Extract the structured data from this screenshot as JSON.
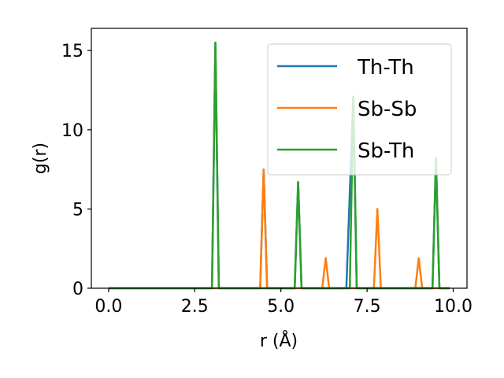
{
  "chart_data": {
    "type": "line",
    "xlabel": "r (Å)",
    "ylabel": "g(r)",
    "xlim": [
      -0.5,
      10.4
    ],
    "ylim": [
      0,
      16.4
    ],
    "xticks": [
      0.0,
      2.5,
      5.0,
      7.5,
      10.0
    ],
    "xtick_labels": [
      "0.0",
      "2.5",
      "5.0",
      "7.5",
      "10.0"
    ],
    "yticks": [
      0,
      5,
      10,
      15
    ],
    "ytick_labels": [
      "0",
      "5",
      "10",
      "15"
    ],
    "grid": false,
    "legend_position": "top-right",
    "series": [
      {
        "name": "Th-Th",
        "color": "#1f77b4",
        "points": [
          [
            0.0,
            0
          ],
          [
            3.0,
            0
          ],
          [
            3.1,
            15.5
          ],
          [
            3.2,
            0
          ],
          [
            4.4,
            0
          ],
          [
            4.5,
            7.5
          ],
          [
            4.6,
            0
          ],
          [
            5.4,
            0
          ],
          [
            5.5,
            6.7
          ],
          [
            5.6,
            0
          ],
          [
            6.9,
            0
          ],
          [
            7.1,
            12.1
          ],
          [
            7.2,
            0
          ],
          [
            9.4,
            0
          ],
          [
            9.5,
            8.2
          ],
          [
            9.6,
            0
          ],
          [
            9.9,
            0
          ]
        ]
      },
      {
        "name": "Sb-Sb",
        "color": "#ff7f0e",
        "points": [
          [
            0.0,
            0
          ],
          [
            4.4,
            0
          ],
          [
            4.5,
            7.5
          ],
          [
            4.6,
            0
          ],
          [
            6.2,
            0
          ],
          [
            6.3,
            1.9
          ],
          [
            6.4,
            0
          ],
          [
            7.7,
            0
          ],
          [
            7.8,
            5.0
          ],
          [
            7.9,
            0
          ],
          [
            8.9,
            0
          ],
          [
            9.0,
            1.9
          ],
          [
            9.1,
            0
          ],
          [
            9.9,
            0
          ]
        ]
      },
      {
        "name": "Sb-Th",
        "color": "#2ca02c",
        "points": [
          [
            0.0,
            0
          ],
          [
            3.0,
            0
          ],
          [
            3.1,
            15.5
          ],
          [
            3.2,
            0
          ],
          [
            5.4,
            0
          ],
          [
            5.5,
            6.7
          ],
          [
            5.6,
            0
          ],
          [
            7.0,
            0
          ],
          [
            7.1,
            12.1
          ],
          [
            7.2,
            0
          ],
          [
            9.4,
            0
          ],
          [
            9.5,
            8.2
          ],
          [
            9.6,
            0
          ],
          [
            9.9,
            0
          ]
        ]
      }
    ]
  }
}
